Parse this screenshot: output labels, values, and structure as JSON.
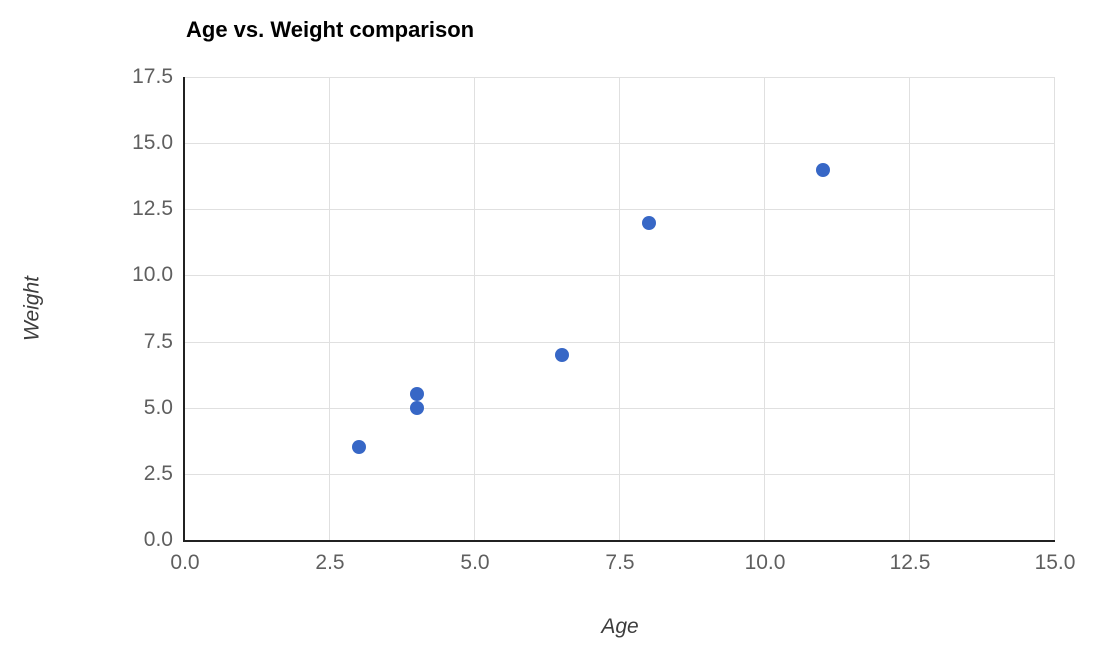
{
  "chart_data": {
    "type": "scatter",
    "title": "Age vs. Weight comparison",
    "xlabel": "Age",
    "ylabel": "Weight",
    "xlim": [
      0,
      15
    ],
    "ylim": [
      0,
      17.5
    ],
    "x_tick_labels": [
      "0.0",
      "2.5",
      "5.0",
      "7.5",
      "10.0",
      "12.5",
      "15.0"
    ],
    "y_tick_labels": [
      "0.0",
      "2.5",
      "5.0",
      "7.5",
      "10.0",
      "12.5",
      "15.0",
      "17.5"
    ],
    "grid": true,
    "legend": "none",
    "points": [
      {
        "x": 3,
        "y": 3.5
      },
      {
        "x": 4,
        "y": 5
      },
      {
        "x": 4,
        "y": 5.5
      },
      {
        "x": 6.5,
        "y": 7
      },
      {
        "x": 8,
        "y": 12
      },
      {
        "x": 11,
        "y": 14
      }
    ],
    "colors": {
      "point": "#3767c6",
      "grid": "#e0e0e0",
      "axis": "#212121",
      "tick_label": "#5f5f5f",
      "axis_label": "#3d3d3d",
      "title": "#000000",
      "background": "#ffffff"
    }
  }
}
